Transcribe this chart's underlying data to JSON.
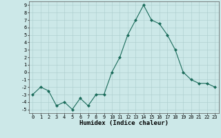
{
  "x": [
    0,
    1,
    2,
    3,
    4,
    5,
    6,
    7,
    8,
    9,
    10,
    11,
    12,
    13,
    14,
    15,
    16,
    17,
    18,
    19,
    20,
    21,
    22,
    23
  ],
  "y": [
    -3,
    -2,
    -2.5,
    -4.5,
    -4,
    -5,
    -3.5,
    -4.5,
    -3,
    -3,
    0,
    2,
    5,
    7,
    9,
    7,
    6.5,
    5,
    3,
    0,
    -1,
    -1.5,
    -1.5,
    -2
  ],
  "xlabel": "Humidex (Indice chaleur)",
  "ylim": [
    -5.5,
    9.5
  ],
  "xlim": [
    -0.5,
    23.5
  ],
  "yticks": [
    -5,
    -4,
    -3,
    -2,
    -1,
    0,
    1,
    2,
    3,
    4,
    5,
    6,
    7,
    8,
    9
  ],
  "xticks": [
    0,
    1,
    2,
    3,
    4,
    5,
    6,
    7,
    8,
    9,
    10,
    11,
    12,
    13,
    14,
    15,
    16,
    17,
    18,
    19,
    20,
    21,
    22,
    23
  ],
  "line_color": "#1a6b5a",
  "marker_size": 2.0,
  "bg_color": "#cce8e8",
  "grid_color": "#aacccc",
  "label_fontsize": 6.5,
  "tick_fontsize": 5.0
}
